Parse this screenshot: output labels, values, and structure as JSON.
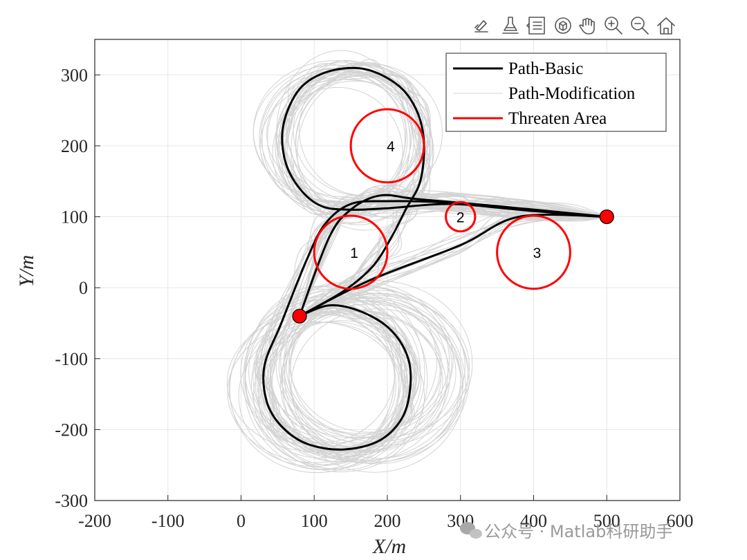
{
  "toolbar": [
    {
      "name": "edit-plot-icon"
    },
    {
      "name": "brush-icon"
    },
    {
      "name": "data-tips-icon"
    },
    {
      "name": "rotate-3d-icon"
    },
    {
      "name": "pan-icon"
    },
    {
      "name": "zoom-in-icon"
    },
    {
      "name": "zoom-out-icon"
    },
    {
      "name": "home-icon"
    }
  ],
  "watermark": {
    "text": "公众号 · Matlab科研助手"
  },
  "colors": {
    "basic": "#000000",
    "modification": "#d3d3d3",
    "threat": "#ff0000",
    "marker": "#ff0000",
    "grid": "#e6e6e6",
    "axis": "#262626"
  },
  "chart_data": {
    "type": "line",
    "title": "",
    "xlabel": "X/m",
    "ylabel": "Y/m",
    "xlim": [
      -200,
      600
    ],
    "ylim": [
      -300,
      350
    ],
    "xticks": [
      -200,
      -100,
      0,
      100,
      200,
      300,
      400,
      500,
      600
    ],
    "yticks": [
      -300,
      -200,
      -100,
      0,
      100,
      200,
      300
    ],
    "xtick_labels": [
      "-200",
      "-100",
      "0",
      "100",
      "200",
      "300",
      "400",
      "500",
      "600"
    ],
    "ytick_labels": [
      "-300",
      "-200",
      "-100",
      "0",
      "100",
      "200",
      "300"
    ],
    "grid": true,
    "legend_location": "top-right",
    "legend": [
      {
        "label": "Path-Basic",
        "color": "#000000"
      },
      {
        "label": "Path-Modification",
        "color": "#d3d3d3"
      },
      {
        "label": "Threaten Area",
        "color": "#ff0000"
      }
    ],
    "threat_areas": [
      {
        "label": "1",
        "cx": 150,
        "cy": 50,
        "r": 50
      },
      {
        "label": "2",
        "cx": 300,
        "cy": 100,
        "r": 20
      },
      {
        "label": "3",
        "cx": 400,
        "cy": 50,
        "r": 50
      },
      {
        "label": "4",
        "cx": 200,
        "cy": 200,
        "r": 50
      }
    ],
    "start_point": {
      "x": 80,
      "y": -40
    },
    "end_point": {
      "x": 500,
      "y": 100
    },
    "basic_paths": [
      {
        "name": "path-basic-direct",
        "points": [
          [
            80,
            -40
          ],
          [
            175,
            10
          ],
          [
            300,
            60
          ],
          [
            380,
            100
          ],
          [
            500,
            100
          ]
        ]
      },
      {
        "name": "path-basic-upper",
        "points": [
          [
            80,
            -40
          ],
          [
            120,
            70
          ],
          [
            150,
            110
          ],
          [
            190,
            130
          ],
          [
            240,
            125
          ],
          [
            350,
            115
          ],
          [
            450,
            105
          ],
          [
            500,
            100
          ]
        ]
      },
      {
        "name": "path-basic-loop-4",
        "points": [
          [
            80,
            -40
          ],
          [
            140,
            -5
          ],
          [
            180,
            30
          ],
          [
            205,
            70
          ],
          [
            225,
            110
          ],
          [
            245,
            150
          ],
          [
            250,
            205
          ],
          [
            240,
            250
          ],
          [
            215,
            285
          ],
          [
            170,
            308
          ],
          [
            120,
            305
          ],
          [
            80,
            280
          ],
          [
            58,
            230
          ],
          [
            60,
            180
          ],
          [
            80,
            140
          ],
          [
            110,
            115
          ],
          [
            150,
            110
          ],
          [
            200,
            112
          ],
          [
            290,
            118
          ],
          [
            400,
            108
          ],
          [
            500,
            100
          ]
        ]
      },
      {
        "name": "path-basic-loop-lower",
        "points": [
          [
            80,
            -40
          ],
          [
            120,
            -25
          ],
          [
            160,
            -32
          ],
          [
            200,
            -55
          ],
          [
            225,
            -90
          ],
          [
            232,
            -130
          ],
          [
            222,
            -180
          ],
          [
            190,
            -215
          ],
          [
            140,
            -228
          ],
          [
            90,
            -220
          ],
          [
            55,
            -195
          ],
          [
            35,
            -160
          ],
          [
            32,
            -110
          ],
          [
            55,
            -50
          ],
          [
            90,
            40
          ],
          [
            115,
            90
          ],
          [
            150,
            118
          ],
          [
            200,
            122
          ],
          [
            280,
            120
          ],
          [
            360,
            112
          ],
          [
            500,
            100
          ]
        ]
      }
    ],
    "modification_bands": [
      {
        "name": "mod-band-lower",
        "cx": 120,
        "cy": -135,
        "rx": 110,
        "ry": 110
      },
      {
        "name": "mod-band-lower-right",
        "cx": 175,
        "cy": -120,
        "rx": 120,
        "ry": 105
      },
      {
        "name": "mod-band-upper",
        "cx": 150,
        "cy": 210,
        "rx": 100,
        "ry": 100
      }
    ]
  }
}
